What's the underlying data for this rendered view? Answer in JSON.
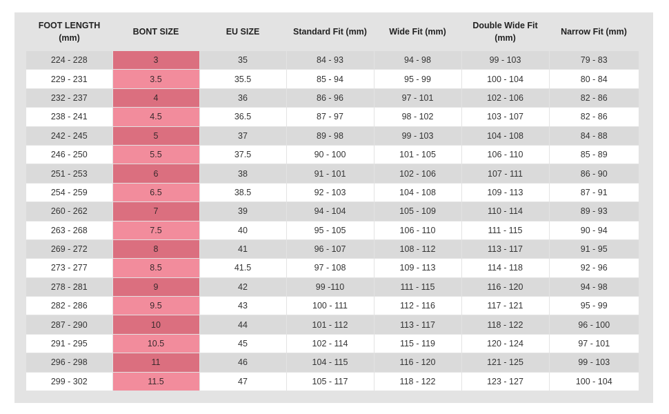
{
  "headers": [
    {
      "line1": "FOOT LENGTH",
      "line2": "(mm)"
    },
    {
      "line1": "BONT SIZE",
      "line2": ""
    },
    {
      "line1": "EU SIZE",
      "line2": ""
    },
    {
      "line1": "Standard Fit (mm)",
      "line2": ""
    },
    {
      "line1": "Wide Fit (mm)",
      "line2": ""
    },
    {
      "line1": "Double Wide Fit",
      "line2": "(mm)"
    },
    {
      "line1": "Narrow Fit (mm)",
      "line2": ""
    }
  ],
  "rows": [
    [
      "224 - 228",
      "3",
      "35",
      "84 - 93",
      "94 - 98",
      "99 - 103",
      "79 - 83"
    ],
    [
      "229 - 231",
      "3.5",
      "35.5",
      "85 - 94",
      "95 - 99",
      "100 - 104",
      "80 - 84"
    ],
    [
      "232 - 237",
      "4",
      "36",
      "86 - 96",
      "97 - 101",
      "102 - 106",
      "82 - 86"
    ],
    [
      "238 - 241",
      "4.5",
      "36.5",
      "87 - 97",
      "98 - 102",
      "103 - 107",
      "82 - 86"
    ],
    [
      "242 - 245",
      "5",
      "37",
      "89 - 98",
      "99 - 103",
      "104 - 108",
      "84 - 88"
    ],
    [
      "246 - 250",
      "5.5",
      "37.5",
      "90 - 100",
      "101 - 105",
      "106 - 110",
      "85 - 89"
    ],
    [
      "251 - 253",
      "6",
      "38",
      "91 - 101",
      "102 - 106",
      "107 - 111",
      "86 - 90"
    ],
    [
      "254 - 259",
      "6.5",
      "38.5",
      "92 - 103",
      "104 - 108",
      "109 - 113",
      "87 - 91"
    ],
    [
      "260 - 262",
      "7",
      "39",
      "94 - 104",
      "105 - 109",
      "110 - 114",
      "89 - 93"
    ],
    [
      "263 - 268",
      "7.5",
      "40",
      "95 - 105",
      "106 - 110",
      "111 - 115",
      "90 - 94"
    ],
    [
      "269 - 272",
      "8",
      "41",
      "96 - 107",
      "108 - 112",
      "113 - 117",
      "91 - 95"
    ],
    [
      "273 - 277",
      "8.5",
      "41.5",
      "97 - 108",
      "109 - 113",
      "114 - 118",
      "92 - 96"
    ],
    [
      "278 - 281",
      "9",
      "42",
      "99 -110",
      "111 - 115",
      "116 - 120",
      "94 - 98"
    ],
    [
      "282 - 286",
      "9.5",
      "43",
      "100 - 111",
      "112 - 116",
      "117 - 121",
      "95 - 99"
    ],
    [
      "287 - 290",
      "10",
      "44",
      "101 - 112",
      "113 - 117",
      "118 - 122",
      "96 - 100"
    ],
    [
      "291 - 295",
      "10.5",
      "45",
      "102 - 114",
      "115 - 119",
      "120 - 124",
      "97 - 101"
    ],
    [
      "296 - 298",
      "11",
      "46",
      "104 - 115",
      "116 - 120",
      "121 - 125",
      "99 - 103"
    ],
    [
      "299 - 302",
      "11.5",
      "47",
      "105 - 117",
      "118 - 122",
      "123 - 127",
      "100 - 104"
    ]
  ],
  "colors": {
    "frame": "#e3e3e3",
    "row_shaded": "#dadada",
    "row_plain": "#ffffff",
    "bont_shaded": "#db6f7f",
    "bont_plain": "#f28c9c"
  }
}
